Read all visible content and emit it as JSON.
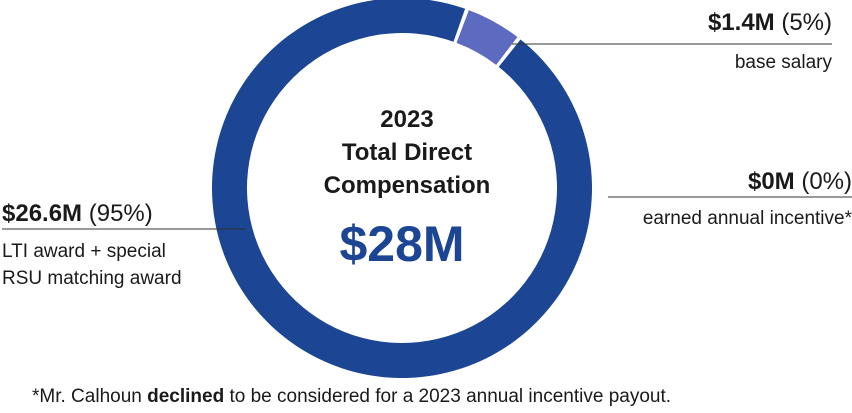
{
  "chart_data": {
    "type": "pie",
    "donut": true,
    "title_lines": [
      "2023",
      "Total Direct",
      "Compensation"
    ],
    "center_value": "$28M",
    "slices": [
      {
        "label": "base salary",
        "value_text": "$1.4M",
        "pct_text": "(5%)",
        "value": 1.4,
        "percent": 5,
        "desc_lines": [
          "base salary"
        ],
        "side": "right"
      },
      {
        "label": "earned annual incentive*",
        "value_text": "$0M",
        "pct_text": "(0%)",
        "value": 0,
        "percent": 0,
        "desc_lines": [
          "earned annual incentive*"
        ],
        "side": "right"
      },
      {
        "label": "LTI award + special RSU matching award",
        "value_text": "$26.6M",
        "pct_text": "(95%)",
        "value": 26.6,
        "percent": 95,
        "desc_lines": [
          "LTI award + special",
          "RSU matching award"
        ],
        "side": "left"
      }
    ],
    "colors": {
      "base_salary": "#5c6bc0",
      "lti": "#1c4593",
      "center_value": "#1c4593"
    }
  },
  "footnote": {
    "before": "*Mr. Calhoun ",
    "bold": "declined",
    "after": " to be considered for a 2023 annual incentive payout."
  }
}
